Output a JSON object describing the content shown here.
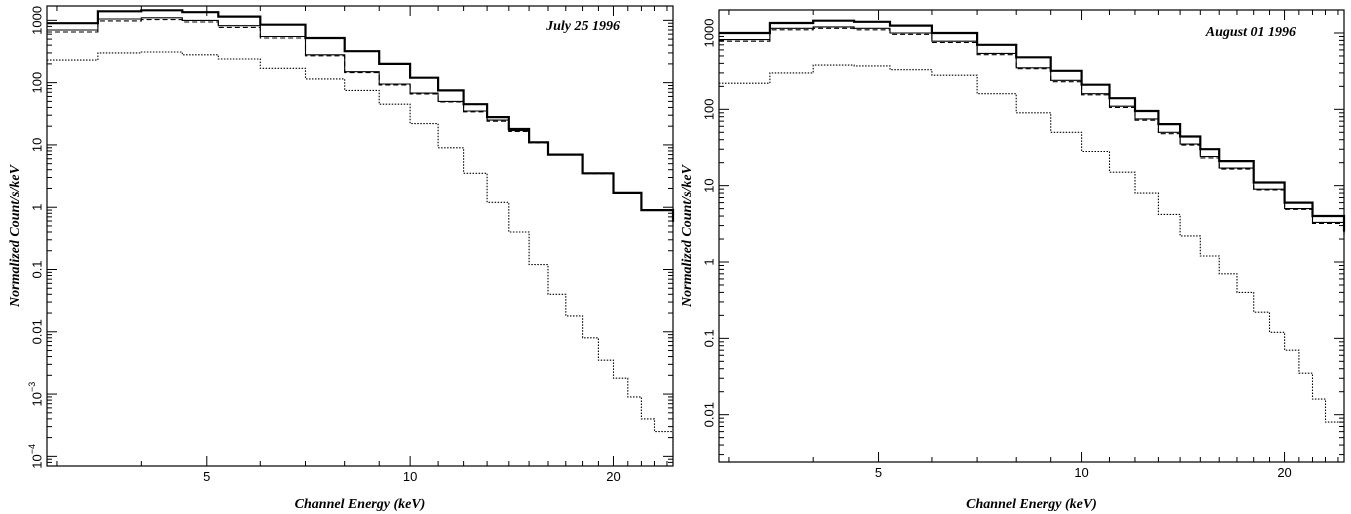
{
  "chart_data": [
    {
      "type": "line",
      "title": "July 25 1996",
      "xlabel": "Channel Energy (keV)",
      "ylabel": "Normalized Count/s/keV",
      "x_scale": "log",
      "y_scale": "log",
      "xlim": [
        2.9,
        24.5
      ],
      "ylim": [
        7e-05,
        1700
      ],
      "x_ticks": [
        {
          "value": 5,
          "label": "5"
        },
        {
          "value": 10,
          "label": "10"
        },
        {
          "value": 20,
          "label": "20"
        }
      ],
      "y_ticks": [
        {
          "value": 0.0001,
          "label": "10",
          "exp": "−4"
        },
        {
          "value": 0.001,
          "label": "10",
          "exp": "−3"
        },
        {
          "value": 0.01,
          "label": "0.01",
          "exp": ""
        },
        {
          "value": 0.1,
          "label": "0.1",
          "exp": ""
        },
        {
          "value": 1,
          "label": "1",
          "exp": ""
        },
        {
          "value": 10,
          "label": "10",
          "exp": ""
        },
        {
          "value": 100,
          "label": "100",
          "exp": ""
        },
        {
          "value": 1000,
          "label": "1000",
          "exp": ""
        }
      ],
      "grid": false,
      "series": [
        {
          "style": "solid-thick",
          "x": [
            2.9,
            3.45,
            4.0,
            4.6,
            5.2,
            6.0,
            7.0,
            8.0,
            9.0,
            10.0,
            11.0,
            12.0,
            13.0,
            14.0,
            15.0,
            16.0,
            18.0,
            20.0,
            22.0,
            24.5
          ],
          "y": [
            900,
            1400,
            1450,
            1350,
            1150,
            850,
            520,
            320,
            200,
            120,
            75,
            45,
            28,
            18,
            11,
            7.0,
            3.5,
            1.7,
            0.9,
            0.58
          ]
        },
        {
          "style": "solid",
          "x": [
            2.9,
            3.45,
            4.0,
            4.6,
            5.2,
            6.0,
            7.0,
            8.0,
            9.0,
            10.0,
            11.0,
            12.0,
            13.0,
            14.0,
            15.0,
            16.0,
            18.0,
            20.0,
            22.0,
            24.5
          ],
          "y": [
            700,
            1050,
            1100,
            1000,
            820,
            550,
            280,
            150,
            95,
            68,
            50,
            35,
            25,
            17,
            11,
            7.0,
            3.5,
            1.7,
            0.9,
            0.58
          ]
        },
        {
          "style": "dashed",
          "x": [
            2.9,
            3.45,
            4.0,
            4.6,
            5.2,
            6.0,
            7.0,
            8.0,
            9.0,
            10.0,
            11.0,
            12.0,
            13.0,
            14.0,
            15.0,
            16.0,
            18.0,
            20.0,
            22.0,
            24.5
          ],
          "y": [
            650,
            980,
            1030,
            940,
            770,
            520,
            270,
            145,
            92,
            66,
            49,
            34,
            24,
            16.5,
            10.8,
            6.9,
            3.45,
            1.68,
            0.89,
            0.57
          ]
        },
        {
          "style": "dotted",
          "x": [
            2.9,
            3.45,
            4.0,
            4.6,
            5.2,
            6.0,
            7.0,
            8.0,
            9.0,
            10.0,
            11.0,
            12.0,
            13.0,
            14.0,
            15.0,
            16.0,
            17.0,
            18.0,
            19.0,
            20.0,
            21.0,
            22.0,
            23.0,
            24.5
          ],
          "y": [
            230,
            300,
            310,
            280,
            240,
            170,
            115,
            75,
            45,
            22,
            9.0,
            3.5,
            1.2,
            0.4,
            0.12,
            0.04,
            0.018,
            0.008,
            0.0035,
            0.0018,
            0.0009,
            0.0004,
            0.00025,
            0.0001
          ]
        }
      ]
    },
    {
      "type": "line",
      "title": "August 01 1996",
      "xlabel": "Channel Energy (keV)",
      "ylabel": "Normalized Count/s/keV",
      "x_scale": "log",
      "y_scale": "log",
      "xlim": [
        2.9,
        24.5
      ],
      "ylim": [
        0.0024,
        2000
      ],
      "x_ticks": [
        {
          "value": 5,
          "label": "5"
        },
        {
          "value": 10,
          "label": "10"
        },
        {
          "value": 20,
          "label": "20"
        }
      ],
      "y_ticks": [
        {
          "value": 0.01,
          "label": "0.01",
          "exp": ""
        },
        {
          "value": 0.1,
          "label": "0.1",
          "exp": ""
        },
        {
          "value": 1,
          "label": "1",
          "exp": ""
        },
        {
          "value": 10,
          "label": "10",
          "exp": ""
        },
        {
          "value": 100,
          "label": "100",
          "exp": ""
        },
        {
          "value": 1000,
          "label": "1000",
          "exp": ""
        }
      ],
      "grid": false,
      "series": [
        {
          "style": "solid-thick",
          "x": [
            2.9,
            3.45,
            4.0,
            4.6,
            5.2,
            6.0,
            7.0,
            8.0,
            9.0,
            10.0,
            11.0,
            12.0,
            13.0,
            14.0,
            15.0,
            16.0,
            18.0,
            20.0,
            22.0,
            24.5
          ],
          "y": [
            1000,
            1350,
            1450,
            1400,
            1250,
            1000,
            700,
            480,
            320,
            210,
            140,
            95,
            64,
            44,
            30,
            21,
            11,
            6.0,
            4.0,
            2.5
          ]
        },
        {
          "style": "solid",
          "x": [
            2.9,
            3.45,
            4.0,
            4.6,
            5.2,
            6.0,
            7.0,
            8.0,
            9.0,
            10.0,
            11.0,
            12.0,
            13.0,
            14.0,
            15.0,
            16.0,
            18.0,
            20.0,
            22.0,
            24.5
          ],
          "y": [
            820,
            1150,
            1200,
            1150,
            1000,
            780,
            540,
            350,
            240,
            160,
            110,
            75,
            50,
            35,
            24,
            17,
            9.0,
            5.0,
            3.3,
            2.3
          ]
        },
        {
          "style": "dashed",
          "x": [
            2.9,
            3.45,
            4.0,
            4.6,
            5.2,
            6.0,
            7.0,
            8.0,
            9.0,
            10.0,
            11.0,
            12.0,
            13.0,
            14.0,
            15.0,
            16.0,
            18.0,
            20.0,
            22.0,
            24.5
          ],
          "y": [
            780,
            1100,
            1150,
            1100,
            960,
            750,
            520,
            340,
            230,
            155,
            106,
            72,
            48,
            34,
            23,
            16.5,
            8.8,
            4.9,
            3.2,
            2.25
          ]
        },
        {
          "style": "dotted",
          "x": [
            2.9,
            3.45,
            4.0,
            4.6,
            5.2,
            6.0,
            7.0,
            8.0,
            9.0,
            10.0,
            11.0,
            12.0,
            13.0,
            14.0,
            15.0,
            16.0,
            17.0,
            18.0,
            19.0,
            20.0,
            21.0,
            22.0,
            23.0,
            24.5
          ],
          "y": [
            220,
            300,
            380,
            370,
            330,
            280,
            160,
            90,
            50,
            28,
            15,
            8.0,
            4.2,
            2.2,
            1.2,
            0.7,
            0.4,
            0.22,
            0.12,
            0.07,
            0.035,
            0.016,
            0.008,
            0.0028
          ]
        }
      ]
    }
  ]
}
